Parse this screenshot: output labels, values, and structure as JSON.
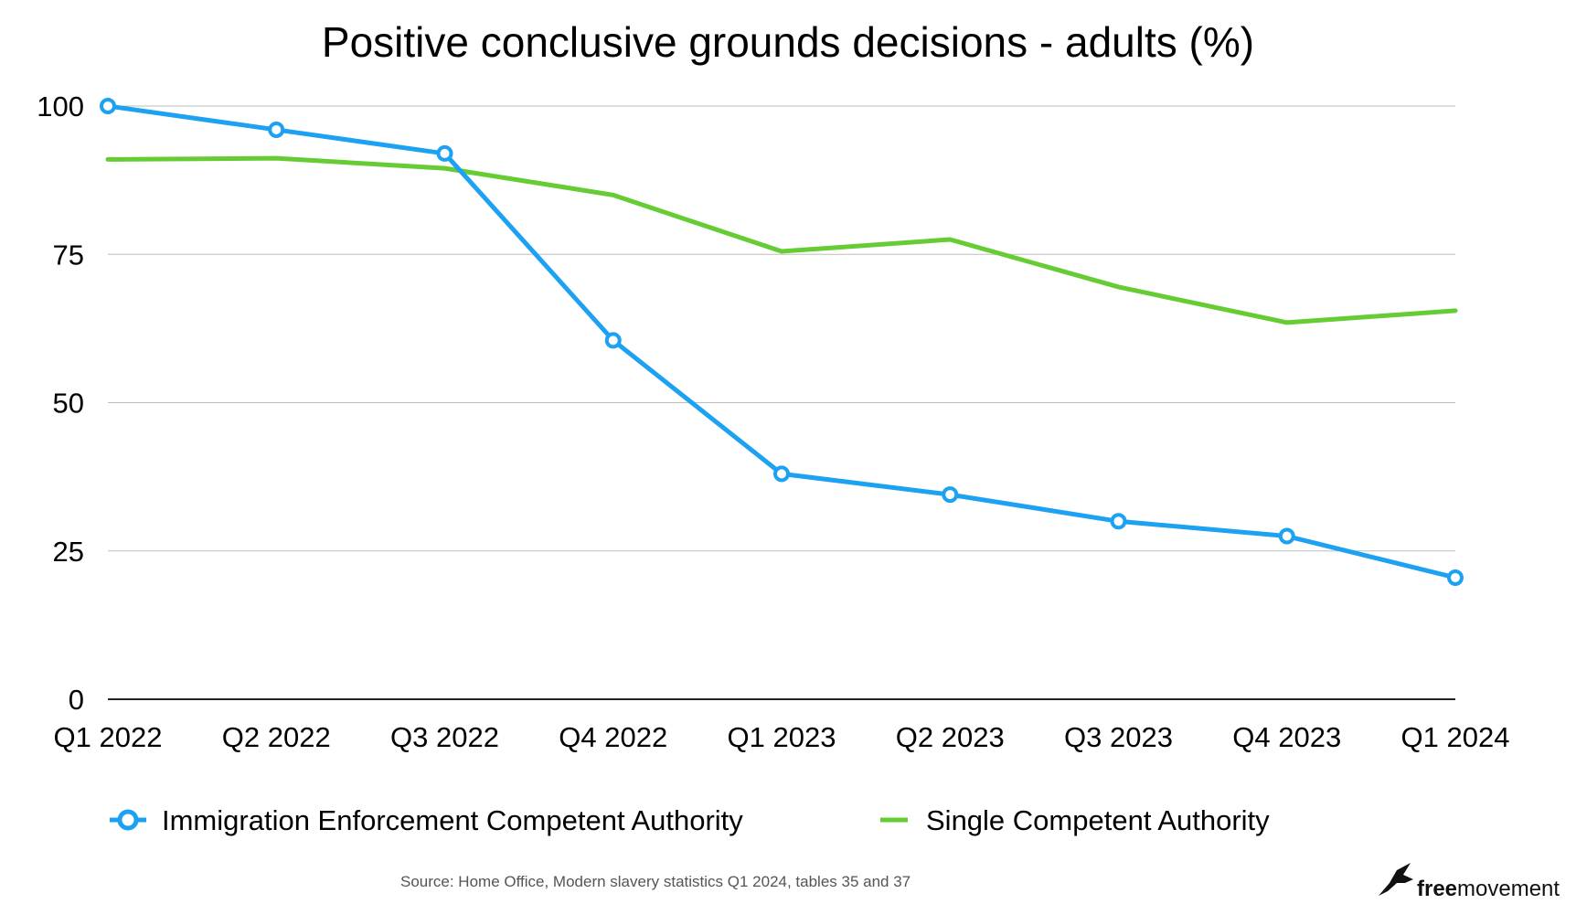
{
  "chart_data": {
    "type": "line",
    "title": "Positive conclusive grounds decisions - adults (%)",
    "categories": [
      "Q1 2022",
      "Q2 2022",
      "Q3 2022",
      "Q4 2022",
      "Q1 2023",
      "Q2 2023",
      "Q3 2023",
      "Q4 2023",
      "Q1 2024"
    ],
    "ylim": [
      0,
      100
    ],
    "yticks": [
      0,
      25,
      50,
      75,
      100
    ],
    "grid": true,
    "legend_position": "bottom",
    "series": [
      {
        "name": "Immigration Enforcement Competent Authority",
        "color": "#1da1f2",
        "markers": true,
        "values": [
          100,
          96,
          92,
          60.5,
          38,
          34.5,
          30,
          27.5,
          20.5
        ]
      },
      {
        "name": "Single Competent Authority",
        "color": "#66cc33",
        "markers": false,
        "values": [
          91,
          91.2,
          89.5,
          85,
          75.5,
          77.5,
          69.5,
          63.5,
          65.5
        ]
      }
    ]
  },
  "source": "Source: Home Office, Modern slavery statistics Q1 2024, tables 35 and 37",
  "logo": {
    "bold": "free",
    "regular": "movement"
  }
}
